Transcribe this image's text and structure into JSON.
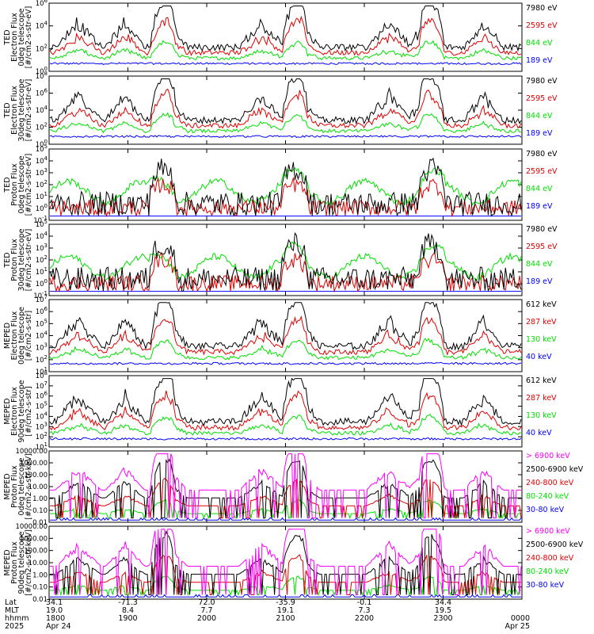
{
  "colors": {
    "black": "#000000",
    "red": "#e00000",
    "green": "#00e000",
    "blue": "#0000ff",
    "magenta": "#ff00ff",
    "frame": "#000000"
  },
  "chart_data": [
    {
      "type": "line",
      "ylabel": [
        "TED",
        "Electron Flux",
        "0deg telescope",
        "[#/cm2-s-str-eV]"
      ],
      "yscale": "log",
      "ylim_exp": [
        0,
        6
      ],
      "ytick_labels": [
        "10^0",
        "10^2",
        "10^4",
        "10^6"
      ],
      "legend": [
        {
          "name": "7980 eV",
          "color": "black"
        },
        {
          "name": "2595 eV",
          "color": "red"
        },
        {
          "name": "844 eV",
          "color": "green"
        },
        {
          "name": "189 eV",
          "color": "blue"
        }
      ]
    },
    {
      "type": "line",
      "ylabel": [
        "TED",
        "Electron Flux",
        "30deg telescope",
        "[#/cm2-s-str-eV]"
      ],
      "yscale": "log",
      "ylim_exp": [
        0,
        8
      ],
      "ytick_labels": [
        "10^0",
        "10^2",
        "10^4",
        "10^6",
        "10^8"
      ],
      "legend": [
        {
          "name": "7980 eV",
          "color": "black"
        },
        {
          "name": "2595 eV",
          "color": "red"
        },
        {
          "name": "844 eV",
          "color": "green"
        },
        {
          "name": "189 eV",
          "color": "blue"
        }
      ]
    },
    {
      "type": "line",
      "ylabel": [
        "TED",
        "Proton Flux",
        "0deg telescope",
        "[#/cm2-s-str-eV]"
      ],
      "yscale": "log",
      "ylim_exp": [
        -1,
        5
      ],
      "ytick_labels": [
        "10^-1",
        "10^0",
        "10^1",
        "10^2",
        "10^3",
        "10^4",
        "10^5"
      ],
      "legend": [
        {
          "name": "7980 eV",
          "color": "black"
        },
        {
          "name": "2595 eV",
          "color": "red"
        },
        {
          "name": "844 eV",
          "color": "green"
        },
        {
          "name": "189 eV",
          "color": "blue"
        }
      ]
    },
    {
      "type": "line",
      "ylabel": [
        "TED",
        "Proton Flux",
        "30deg telescope",
        "[#/cm2-s-str-eV]"
      ],
      "yscale": "log",
      "ylim_exp": [
        -1,
        5
      ],
      "ytick_labels": [
        "10^-1",
        "10^0",
        "10^1",
        "10^2",
        "10^3",
        "10^4",
        "10^5"
      ],
      "legend": [
        {
          "name": "7980 eV",
          "color": "black"
        },
        {
          "name": "2595 eV",
          "color": "red"
        },
        {
          "name": "844 eV",
          "color": "green"
        },
        {
          "name": "189 eV",
          "color": "blue"
        }
      ]
    },
    {
      "type": "line",
      "ylabel": [
        "MEPED",
        "Electron Flux",
        "0deg telescope",
        "[#/cm2-s-str]"
      ],
      "yscale": "log",
      "ylim_exp": [
        1,
        7
      ],
      "ytick_labels": [
        "10^1",
        "10^2",
        "10^3",
        "10^4",
        "10^5",
        "10^6",
        "10^7"
      ],
      "legend": [
        {
          "name": "612 keV",
          "color": "black"
        },
        {
          "name": "287 keV",
          "color": "red"
        },
        {
          "name": "130 keV",
          "color": "green"
        },
        {
          "name": "40 keV",
          "color": "blue"
        }
      ]
    },
    {
      "type": "line",
      "ylabel": [
        "MEPED",
        "Electron Flux",
        "90deg telescope",
        "[#/cm2-s-str]"
      ],
      "yscale": "log",
      "ylim_exp": [
        1,
        8
      ],
      "ytick_labels": [
        "10^1",
        "10^2",
        "10^3",
        "10^4",
        "10^5",
        "10^6",
        "10^7",
        "10^8"
      ],
      "legend": [
        {
          "name": "612 keV",
          "color": "black"
        },
        {
          "name": "287 keV",
          "color": "red"
        },
        {
          "name": "130 keV",
          "color": "green"
        },
        {
          "name": "40 keV",
          "color": "blue"
        }
      ]
    },
    {
      "type": "line",
      "ylabel": [
        "MEPED",
        "Proton Flux",
        "0deg telescope",
        "[#/cm2-s-str-keV]"
      ],
      "yscale": "log",
      "ylim_exp": [
        -2,
        4
      ],
      "ytick_labels": [
        "0.01",
        "0.10",
        "1.00",
        "10.00",
        "100.00",
        "1000.00",
        "10000.00"
      ],
      "legend": [
        {
          "name": "> 6900 keV",
          "color": "magenta"
        },
        {
          "name": "2500-6900 keV",
          "color": "black"
        },
        {
          "name": "240-800 keV",
          "color": "red"
        },
        {
          "name": "80-240 keV",
          "color": "green"
        },
        {
          "name": "30-80 keV",
          "color": "blue"
        }
      ]
    },
    {
      "type": "line",
      "ylabel": [
        "MEPED",
        "Proton Flux",
        "90deg telescope",
        "[#/cm2-s-str-keV]"
      ],
      "yscale": "log",
      "ylim_exp": [
        -2,
        4
      ],
      "ytick_labels": [
        "0.01",
        "0.10",
        "1.00",
        "10.00",
        "100.00",
        "1000.00",
        "10000.00"
      ],
      "legend": [
        {
          "name": "> 6900 keV",
          "color": "magenta"
        },
        {
          "name": "2500-6900 keV",
          "color": "black"
        },
        {
          "name": "240-800 keV",
          "color": "red"
        },
        {
          "name": "80-240 keV",
          "color": "green"
        },
        {
          "name": "30-80 keV",
          "color": "blue"
        }
      ]
    }
  ],
  "x_axis": {
    "row_labels": [
      "Lat",
      "MLT",
      "hhmm",
      "2025"
    ],
    "ticks": [
      {
        "lat": "34.1",
        "mlt": "19.0",
        "hhmm": "1800",
        "date": "Apr 24"
      },
      {
        "lat": "-71.3",
        "mlt": "8.4",
        "hhmm": "1900",
        "date": ""
      },
      {
        "lat": "72.0",
        "mlt": "7.7",
        "hhmm": "2000",
        "date": ""
      },
      {
        "lat": "-35.9",
        "mlt": "19.1",
        "hhmm": "2100",
        "date": ""
      },
      {
        "lat": "-0.1",
        "mlt": "7.3",
        "hhmm": "2200",
        "date": ""
      },
      {
        "lat": "34.4",
        "mlt": "19.5",
        "hhmm": "2300",
        "date": ""
      },
      {
        "lat": "",
        "mlt": "",
        "hhmm": "0000",
        "date": "Apr 25"
      }
    ]
  }
}
